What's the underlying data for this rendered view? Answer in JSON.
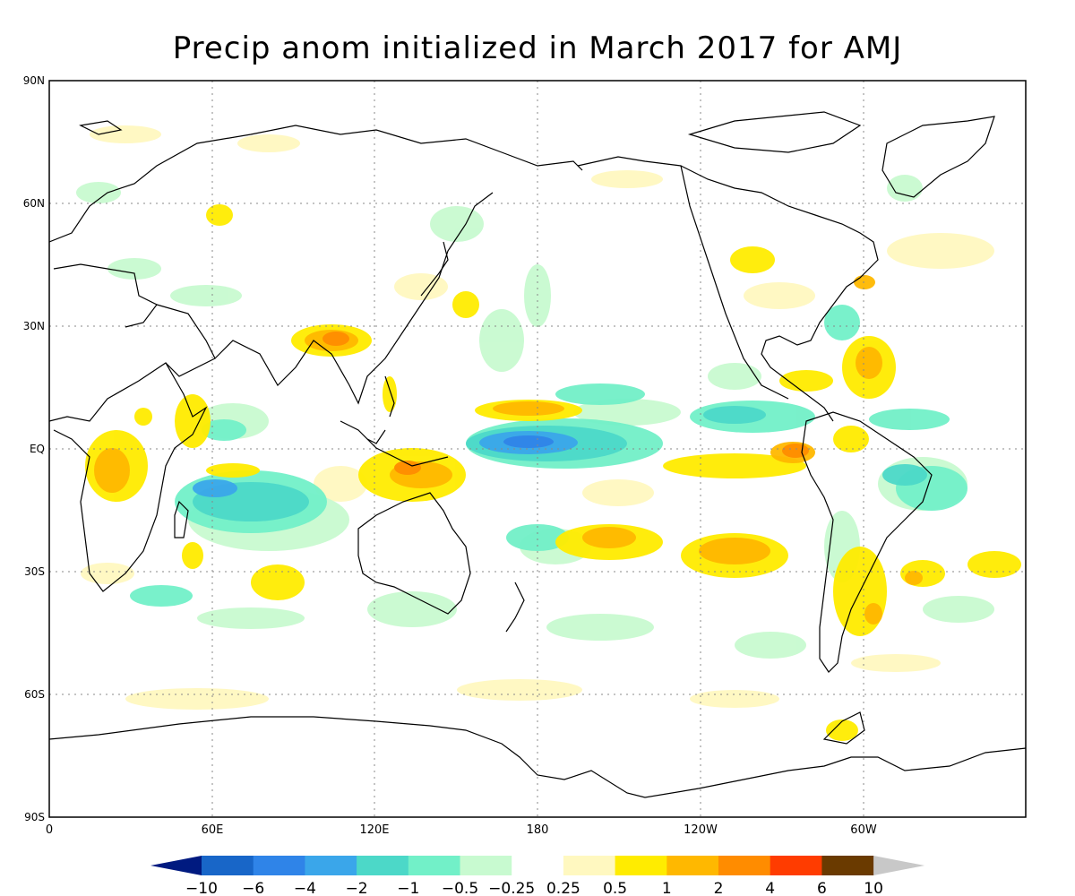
{
  "title": "Precip anom initialized in March 2017 for AMJ",
  "map": {
    "lat_labels": [
      "90N",
      "60N",
      "30N",
      "EQ",
      "30S",
      "60S",
      "90S"
    ],
    "lon_labels": [
      "0",
      "60E",
      "120E",
      "180",
      "120W",
      "60W"
    ],
    "lat_range": [
      -90,
      90
    ],
    "lon_range": [
      0,
      360
    ],
    "gridlines": true
  },
  "colorbar": {
    "labels": [
      "-10",
      "-6",
      "-4",
      "-2",
      "-1",
      "-0.5",
      "-0.25",
      "0.25",
      "0.5",
      "1",
      "2",
      "4",
      "6",
      "10"
    ],
    "colors": [
      "#001a80",
      "#1866c8",
      "#2f84e8",
      "#3aa6ea",
      "#4cd8c8",
      "#72f0c8",
      "#c8fad0",
      "#ffffff",
      "#fff8c0",
      "#ffec00",
      "#ffb800",
      "#ff8c00",
      "#ff3c00",
      "#6a3a00",
      "#c8c8c8"
    ],
    "extend": "both"
  },
  "chart_data": {
    "type": "heatmap",
    "title": "Precip anom initialized in March 2017 for AMJ",
    "xlabel": "",
    "ylabel": "",
    "xlim": [
      0,
      360
    ],
    "ylim": [
      -90,
      90
    ],
    "contour_levels": [
      -10,
      -6,
      -4,
      -2,
      -1,
      -0.5,
      -0.25,
      0.25,
      0.5,
      1,
      2,
      4,
      6,
      10
    ],
    "anomaly_regions": [
      {
        "lon": 195,
        "lat": 1,
        "value": -2
      },
      {
        "lon": 210,
        "lat": 8,
        "value": -1
      },
      {
        "lon": 255,
        "lat": 10,
        "value": -1
      },
      {
        "lon": 80,
        "lat": -15,
        "value": -2
      },
      {
        "lon": 95,
        "lat": -18,
        "value": -1
      },
      {
        "lon": 320,
        "lat": -10,
        "value": -1
      },
      {
        "lon": 55,
        "lat": -40,
        "value": -0.5
      },
      {
        "lon": 282,
        "lat": 22,
        "value": -0.5
      },
      {
        "lon": 185,
        "lat": 10,
        "value": 1
      },
      {
        "lon": 220,
        "lat": -5,
        "value": 1
      },
      {
        "lon": 255,
        "lat": -2,
        "value": 2
      },
      {
        "lon": 160,
        "lat": -10,
        "value": 2
      },
      {
        "lon": 140,
        "lat": -5,
        "value": 2
      },
      {
        "lon": 100,
        "lat": 27,
        "value": 2
      },
      {
        "lon": 20,
        "lat": -3,
        "value": 2
      },
      {
        "lon": 230,
        "lat": -25,
        "value": 2
      },
      {
        "lon": 198,
        "lat": -23,
        "value": 1
      },
      {
        "lon": 303,
        "lat": 22,
        "value": 2
      },
      {
        "lon": 300,
        "lat": -40,
        "value": 1
      },
      {
        "lon": 325,
        "lat": -33,
        "value": 1
      }
    ]
  }
}
